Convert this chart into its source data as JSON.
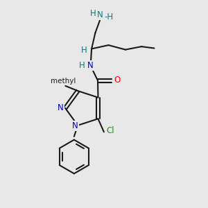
{
  "bg_color": "#e8e8e8",
  "bond_color": "#1a1a1a",
  "N_color": "#0000cc",
  "NH_color": "#008080",
  "O_color": "#ff0000",
  "Cl_color": "#228B22",
  "figsize": [
    3.0,
    3.0
  ],
  "dpi": 100,
  "xlim": [
    0,
    10
  ],
  "ylim": [
    0,
    10
  ]
}
